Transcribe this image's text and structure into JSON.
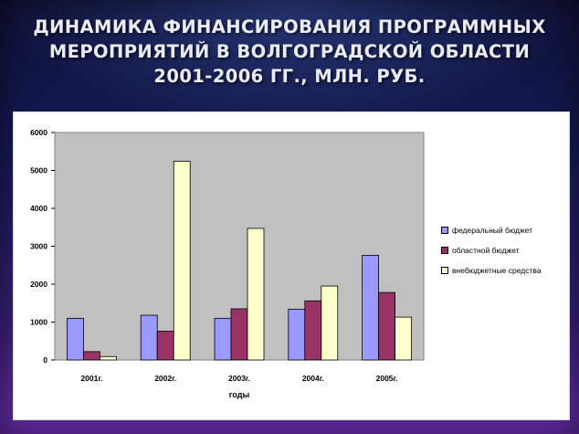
{
  "slide": {
    "title_lines": [
      "ДИНАМИКА ФИНАНСИРОВАНИЯ ПРОГРАММНЫХ",
      "МЕРОПРИЯТИЙ В ВОЛГОГРАДСКОЙ ОБЛАСТИ",
      "2001-2006 ГГ., МЛН. РУБ."
    ]
  },
  "chart_data": {
    "type": "bar",
    "title": "",
    "xlabel": "годы",
    "ylabel": "",
    "categories": [
      "2001г.",
      "2002г.",
      "2003г.",
      "2004г.",
      "2005г."
    ],
    "ylim": [
      0,
      6000
    ],
    "yticks": [
      0,
      1000,
      2000,
      3000,
      4000,
      5000,
      6000
    ],
    "grid": false,
    "legend_position": "right",
    "plot_background": "#c0c0c0",
    "series": [
      {
        "name": "федеральный бюджет",
        "color": "#9999ff",
        "values": [
          1100,
          1180,
          1100,
          1340,
          2760
        ]
      },
      {
        "name": "областной бюджет",
        "color": "#993366",
        "values": [
          220,
          760,
          1350,
          1560,
          1780
        ]
      },
      {
        "name": "внебюджетные средства",
        "color": "#ffffcc",
        "values": [
          90,
          5240,
          3470,
          1950,
          1130
        ]
      }
    ]
  }
}
